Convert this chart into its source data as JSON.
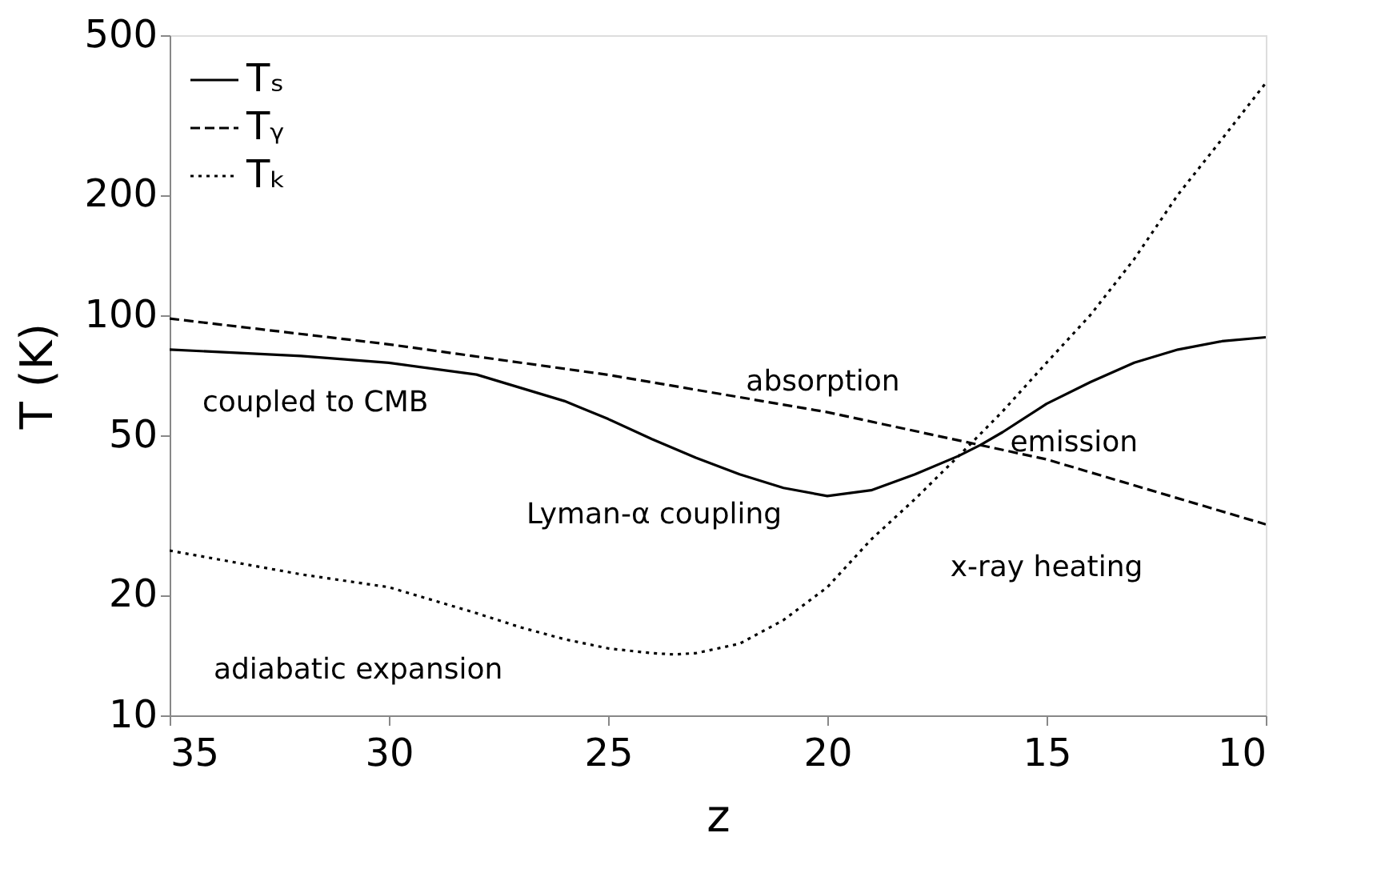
{
  "chart_data": {
    "type": "line",
    "xlabel": "z",
    "ylabel": "T (K)",
    "log": "y",
    "grid": false,
    "legend": "top left",
    "marker": "none",
    "xlim": [
      35,
      10
    ],
    "xticks": [
      35,
      30,
      25,
      20,
      15,
      10
    ],
    "ylim": [
      10,
      500
    ],
    "yticks": [
      10,
      20,
      50,
      100,
      200,
      500
    ],
    "series": [
      {
        "name": "Tₛ",
        "color": "#000000",
        "line_style": "solid",
        "x": [
          35,
          32,
          30,
          28,
          26,
          25,
          24,
          23,
          22,
          21,
          20,
          19,
          18,
          17,
          16.5,
          16,
          15,
          14,
          13,
          12,
          11,
          10
        ],
        "values": [
          82,
          79,
          76,
          71,
          61,
          55,
          49,
          44,
          40,
          37,
          35.3,
          36.5,
          40,
          44.5,
          47.4,
          51,
          60,
          68,
          76,
          82,
          86,
          88
        ]
      },
      {
        "name": "Tᵧ",
        "color": "#000000",
        "line_style": "dashed",
        "x": [
          35,
          30,
          25,
          20,
          15,
          10
        ],
        "values": [
          98,
          84.5,
          70.9,
          57.2,
          43.6,
          30
        ]
      },
      {
        "name": "Tₖ",
        "color": "#000000",
        "line_style": "dotted",
        "x": [
          35,
          32,
          30,
          28,
          27,
          26,
          25,
          24,
          23.5,
          23,
          22,
          21,
          20,
          19,
          18,
          17,
          16,
          15,
          14,
          13,
          12,
          11,
          10
        ],
        "values": [
          25.8,
          22.5,
          20.9,
          18,
          16.6,
          15.5,
          14.7,
          14.3,
          14.2,
          14.3,
          15.1,
          17.3,
          20.9,
          27.5,
          34.7,
          44.5,
          57.5,
          76,
          100,
          138,
          200,
          275,
          380
        ]
      }
    ],
    "annotations": [
      "coupled to CMB",
      "absorption",
      "emission",
      "Lyman-α coupling",
      "x-ray heating",
      "adiabatic expansion"
    ]
  }
}
